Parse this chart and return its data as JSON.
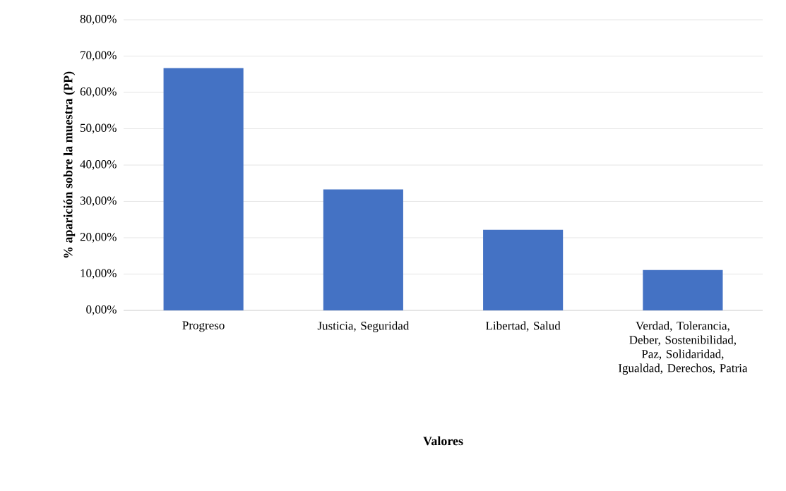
{
  "chart_data": {
    "type": "bar",
    "xlabel": "Valores",
    "ylabel": "% aparición sobre la muestra (PP)",
    "categories": [
      "Progreso",
      "Justicia, Seguridad",
      "Libertad, Salud",
      "Verdad, Tolerancia, Deber, Sostenibilidad, Paz, Solidaridad, Igualdad, Derechos, Patria"
    ],
    "values": [
      66.7,
      33.3,
      22.2,
      11.1
    ],
    "color": "#4472c4",
    "ylim": [
      0,
      80
    ],
    "yticks": [
      {
        "value": 0,
        "label": "0,00%"
      },
      {
        "value": 10,
        "label": "10,00%"
      },
      {
        "value": 20,
        "label": "20,00%"
      },
      {
        "value": 30,
        "label": "30,00%"
      },
      {
        "value": 40,
        "label": "40,00%"
      },
      {
        "value": 50,
        "label": "50,00%"
      },
      {
        "value": 60,
        "label": "60,00%"
      },
      {
        "value": 70,
        "label": "70,00%"
      },
      {
        "value": 80,
        "label": "80,00%"
      }
    ],
    "grid": "y"
  }
}
